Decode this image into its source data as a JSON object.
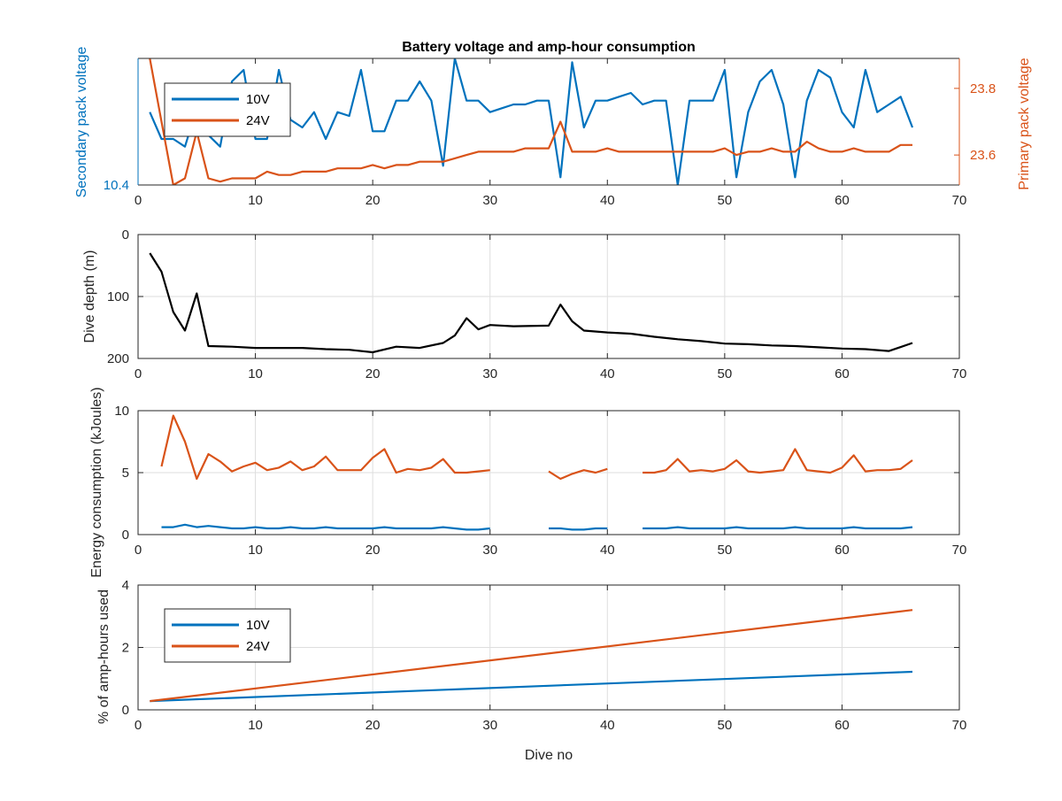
{
  "figure": {
    "title": "Battery voltage and amp-hour consumption"
  },
  "chart_data": [
    {
      "type": "line",
      "title": "Battery voltage and amp-hour consumption",
      "xlabel": "",
      "ylabel_left": "Secondary pack voltage",
      "ylabel_right": "Primary pack voltage",
      "xlim": [
        0,
        70
      ],
      "xticks": [
        0,
        10,
        20,
        30,
        40,
        50,
        60,
        70
      ],
      "ylim_left": [
        10.4,
        10.73
      ],
      "yticks_left": [
        10.4
      ],
      "ylim_right": [
        23.51,
        23.89
      ],
      "yticks_right": [
        23.6,
        23.8
      ],
      "grid": false,
      "legend": {
        "position": "top-left",
        "entries": [
          "10V",
          "24V"
        ]
      },
      "colors": {
        "10V": "#0072BD",
        "24V": "#D95319"
      },
      "series": [
        {
          "name": "10V",
          "axis": "left",
          "x": [
            1,
            2,
            3,
            4,
            5,
            6,
            7,
            8,
            9,
            10,
            11,
            12,
            13,
            14,
            15,
            16,
            17,
            18,
            19,
            20,
            21,
            22,
            23,
            24,
            25,
            26,
            27,
            28,
            29,
            30,
            31,
            32,
            33,
            34,
            35,
            36,
            37,
            38,
            39,
            40,
            41,
            42,
            43,
            44,
            45,
            46,
            47,
            48,
            49,
            50,
            51,
            52,
            53,
            54,
            55,
            56,
            57,
            58,
            59,
            60,
            61,
            62,
            63,
            64,
            65,
            66
          ],
          "y": [
            10.59,
            10.52,
            10.52,
            10.5,
            10.6,
            10.53,
            10.5,
            10.67,
            10.7,
            10.52,
            10.52,
            10.7,
            10.57,
            10.55,
            10.59,
            10.52,
            10.59,
            10.58,
            10.7,
            10.54,
            10.54,
            10.62,
            10.62,
            10.67,
            10.62,
            10.45,
            10.73,
            10.62,
            10.62,
            10.59,
            10.6,
            10.61,
            10.61,
            10.62,
            10.62,
            10.42,
            10.72,
            10.55,
            10.62,
            10.62,
            10.63,
            10.64,
            10.61,
            10.62,
            10.62,
            10.4,
            10.62,
            10.62,
            10.62,
            10.7,
            10.42,
            10.59,
            10.67,
            10.7,
            10.61,
            10.42,
            10.62,
            10.7,
            10.68,
            10.59,
            10.55,
            10.7,
            10.59,
            10.61,
            10.63,
            10.55
          ]
        },
        {
          "name": "24V",
          "axis": "right",
          "x": [
            1,
            2,
            3,
            4,
            5,
            6,
            7,
            8,
            9,
            10,
            11,
            12,
            13,
            14,
            15,
            16,
            17,
            18,
            19,
            20,
            21,
            22,
            23,
            24,
            25,
            26,
            27,
            28,
            29,
            30,
            31,
            32,
            33,
            34,
            35,
            36,
            37,
            38,
            39,
            40,
            41,
            42,
            43,
            44,
            45,
            46,
            47,
            48,
            49,
            50,
            51,
            52,
            53,
            54,
            55,
            56,
            57,
            58,
            59,
            60,
            61,
            62,
            63,
            64,
            65,
            66
          ],
          "y": [
            23.89,
            23.7,
            23.51,
            23.53,
            23.67,
            23.53,
            23.52,
            23.53,
            23.53,
            23.53,
            23.55,
            23.54,
            23.54,
            23.55,
            23.55,
            23.55,
            23.56,
            23.56,
            23.56,
            23.57,
            23.56,
            23.57,
            23.57,
            23.58,
            23.58,
            23.58,
            23.59,
            23.6,
            23.61,
            23.61,
            23.61,
            23.61,
            23.62,
            23.62,
            23.62,
            23.7,
            23.61,
            23.61,
            23.61,
            23.62,
            23.61,
            23.61,
            23.61,
            23.61,
            23.61,
            23.61,
            23.61,
            23.61,
            23.61,
            23.62,
            23.6,
            23.61,
            23.61,
            23.62,
            23.61,
            23.61,
            23.64,
            23.62,
            23.61,
            23.61,
            23.62,
            23.61,
            23.61,
            23.61,
            23.63,
            23.63
          ]
        }
      ]
    },
    {
      "type": "line",
      "title": "",
      "xlabel": "",
      "ylabel": "Dive depth (m)",
      "xlim": [
        0,
        70
      ],
      "xticks": [
        0,
        10,
        20,
        30,
        40,
        50,
        60,
        70
      ],
      "ylim": [
        0,
        200
      ],
      "yticks": [
        0,
        100,
        200
      ],
      "y_reversed": true,
      "grid": true,
      "colors": {
        "depth": "#000000"
      },
      "series": [
        {
          "x": [
            1,
            2,
            3,
            4,
            5,
            6,
            8,
            10,
            12,
            14,
            16,
            18,
            20,
            22,
            24,
            26,
            27,
            28,
            29,
            30,
            32,
            35,
            36,
            37,
            38,
            40,
            42,
            44,
            46,
            48,
            50,
            52,
            54,
            56,
            58,
            60,
            62,
            64,
            66
          ],
          "y": [
            30,
            60,
            125,
            155,
            95,
            180,
            181,
            183,
            183,
            183,
            185,
            186,
            190,
            181,
            183,
            175,
            163,
            135,
            153,
            146,
            148,
            147,
            113,
            140,
            155,
            158,
            160,
            165,
            169,
            172,
            176,
            177,
            179,
            180,
            182,
            184,
            185,
            188,
            175
          ]
        }
      ]
    },
    {
      "type": "line",
      "title": "",
      "xlabel": "",
      "ylabel": "Energy consumption (kJoules)",
      "xlim": [
        0,
        70
      ],
      "xticks": [
        0,
        10,
        20,
        30,
        40,
        50,
        60,
        70
      ],
      "ylim": [
        0,
        10
      ],
      "yticks": [
        0,
        5,
        10
      ],
      "grid": true,
      "colors": {
        "10V": "#0072BD",
        "24V": "#D95319"
      },
      "series": [
        {
          "name": "24V",
          "segments": [
            {
              "x": [
                2,
                3,
                4,
                5,
                6,
                7,
                8,
                9,
                10,
                11,
                12,
                13,
                14,
                15,
                16,
                17,
                18,
                19,
                20,
                21,
                22,
                23,
                24,
                25,
                26,
                27,
                28,
                29,
                30
              ],
              "y": [
                5.5,
                9.6,
                7.5,
                4.5,
                6.5,
                5.9,
                5.1,
                5.5,
                5.8,
                5.2,
                5.4,
                5.9,
                5.2,
                5.5,
                6.3,
                5.2,
                5.2,
                5.2,
                6.2,
                6.9,
                5.0,
                5.3,
                5.2,
                5.4,
                6.1,
                5.0,
                5.0,
                5.1,
                5.2
              ]
            },
            {
              "x": [
                35,
                36,
                37,
                38,
                39,
                40
              ],
              "y": [
                5.1,
                4.5,
                4.9,
                5.2,
                5.0,
                5.3
              ]
            },
            {
              "x": [
                43,
                44,
                45,
                46,
                47,
                48,
                49,
                50,
                51,
                52,
                53,
                54,
                55,
                56,
                57,
                58,
                59,
                60,
                61,
                62,
                63,
                64,
                65,
                66
              ],
              "y": [
                5.0,
                5.0,
                5.2,
                6.1,
                5.1,
                5.2,
                5.1,
                5.3,
                6.0,
                5.1,
                5.0,
                5.1,
                5.2,
                6.9,
                5.2,
                5.1,
                5.0,
                5.4,
                6.4,
                5.1,
                5.2,
                5.2,
                5.3,
                6.0
              ]
            }
          ]
        },
        {
          "name": "10V",
          "segments": [
            {
              "x": [
                2,
                3,
                4,
                5,
                6,
                7,
                8,
                9,
                10,
                11,
                12,
                13,
                14,
                15,
                16,
                17,
                18,
                19,
                20,
                21,
                22,
                23,
                24,
                25,
                26,
                27,
                28,
                29,
                30
              ],
              "y": [
                0.6,
                0.6,
                0.8,
                0.6,
                0.7,
                0.6,
                0.5,
                0.5,
                0.6,
                0.5,
                0.5,
                0.6,
                0.5,
                0.5,
                0.6,
                0.5,
                0.5,
                0.5,
                0.5,
                0.6,
                0.5,
                0.5,
                0.5,
                0.5,
                0.6,
                0.5,
                0.4,
                0.4,
                0.5
              ]
            },
            {
              "x": [
                35,
                36,
                37,
                38,
                39,
                40
              ],
              "y": [
                0.5,
                0.5,
                0.4,
                0.4,
                0.5,
                0.5
              ]
            },
            {
              "x": [
                43,
                44,
                45,
                46,
                47,
                48,
                49,
                50,
                51,
                52,
                53,
                54,
                55,
                56,
                57,
                58,
                59,
                60,
                61,
                62,
                63,
                64,
                65,
                66
              ],
              "y": [
                0.5,
                0.5,
                0.5,
                0.6,
                0.5,
                0.5,
                0.5,
                0.5,
                0.6,
                0.5,
                0.5,
                0.5,
                0.5,
                0.6,
                0.5,
                0.5,
                0.5,
                0.5,
                0.6,
                0.5,
                0.5,
                0.5,
                0.5,
                0.6
              ]
            }
          ]
        }
      ]
    },
    {
      "type": "line",
      "title": "",
      "xlabel": "Dive no",
      "ylabel": "% of amp-hours used",
      "xlim": [
        0,
        70
      ],
      "xticks": [
        0,
        10,
        20,
        30,
        40,
        50,
        60,
        70
      ],
      "ylim": [
        0,
        4
      ],
      "yticks": [
        0,
        2,
        4
      ],
      "grid": true,
      "legend": {
        "position": "left",
        "entries": [
          "10V",
          "24V"
        ]
      },
      "colors": {
        "10V": "#0072BD",
        "24V": "#D95319"
      },
      "series": [
        {
          "name": "10V",
          "x": [
            1,
            66
          ],
          "y": [
            0.28,
            1.22
          ]
        },
        {
          "name": "24V",
          "x": [
            1,
            66
          ],
          "y": [
            0.28,
            3.2
          ]
        }
      ]
    }
  ]
}
